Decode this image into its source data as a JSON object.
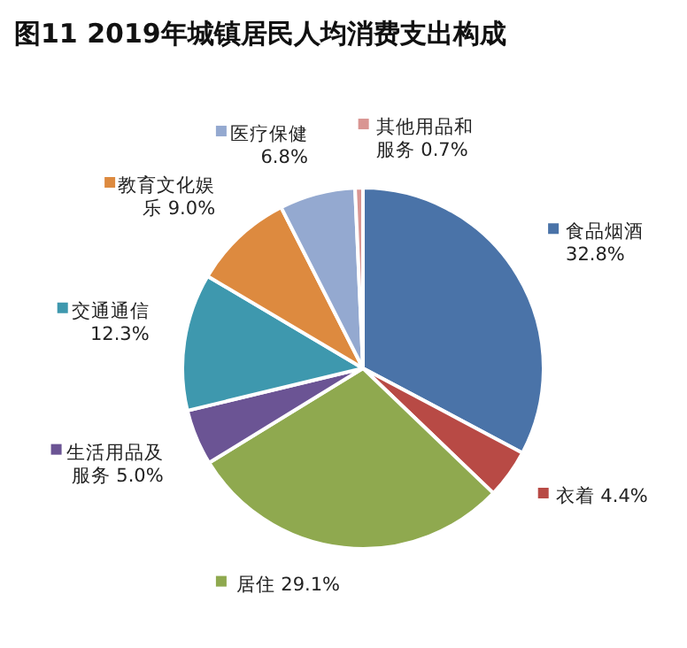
{
  "chart_data": {
    "type": "pie",
    "title": "图11  2019年城镇居民人均消费支出构成",
    "categories": [
      "食品烟酒",
      "衣着",
      "居住",
      "生活用品及服务",
      "交通通信",
      "教育文化娱乐",
      "医疗保健",
      "其他用品和服务"
    ],
    "values": [
      32.8,
      4.4,
      29.1,
      5.0,
      12.3,
      9.0,
      6.8,
      0.7
    ],
    "value_labels": [
      "32.8%",
      "4.4%",
      "29.1%",
      "5.0%",
      "12.3%",
      "9.0%",
      "6.8%",
      "0.7%"
    ],
    "legend": "top left",
    "colors": [
      "#4a73a8",
      "#b84a45",
      "#8fa94f",
      "#6b5494",
      "#3e98ae",
      "#dd8a3f",
      "#94a9d0",
      "#d99592"
    ]
  }
}
